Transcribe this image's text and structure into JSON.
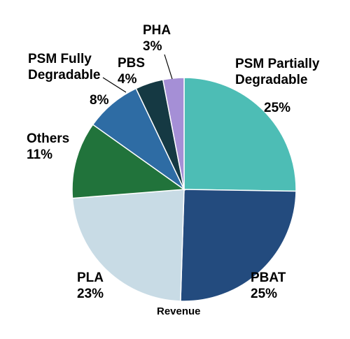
{
  "chart_data": {
    "type": "pie",
    "xlabel": "Revenue",
    "start_angle_deg": 0,
    "direction": "clockwise",
    "slices": [
      {
        "name": "PSM Partially Degradable",
        "value": 25,
        "label": "25%",
        "color": "#4dbdb5"
      },
      {
        "name": "PBAT",
        "value": 25,
        "label": "25%",
        "color": "#234b7e"
      },
      {
        "name": "PLA",
        "value": 23,
        "label": "23%",
        "color": "#c8dbe5"
      },
      {
        "name": "Others",
        "value": 11,
        "label": "11%",
        "color": "#21733b"
      },
      {
        "name": "PSM Fully Degradable",
        "value": 8,
        "label": "8%",
        "color": "#2e6ca4"
      },
      {
        "name": "PBS",
        "value": 4,
        "label": "4%",
        "color": "#153943"
      },
      {
        "name": "PHA",
        "value": 3,
        "label": "3%",
        "color": "#a58fd6"
      }
    ],
    "legend": "none"
  },
  "labels": {
    "psm_partially_line1": "PSM Partially",
    "psm_partially_line2": "Degradable",
    "psm_partially_pct": "25%",
    "pbat_name": "PBAT",
    "pbat_pct": "25%",
    "pla_name": "PLA",
    "pla_pct": "23%",
    "others_name": "Others",
    "others_pct": "11%",
    "psm_fully_line1": "PSM Fully",
    "psm_fully_line2": "Degradable",
    "psm_fully_pct": "8%",
    "pbs_name": "PBS",
    "pbs_pct": "4%",
    "pha_name": "PHA",
    "pha_pct": "3%"
  }
}
